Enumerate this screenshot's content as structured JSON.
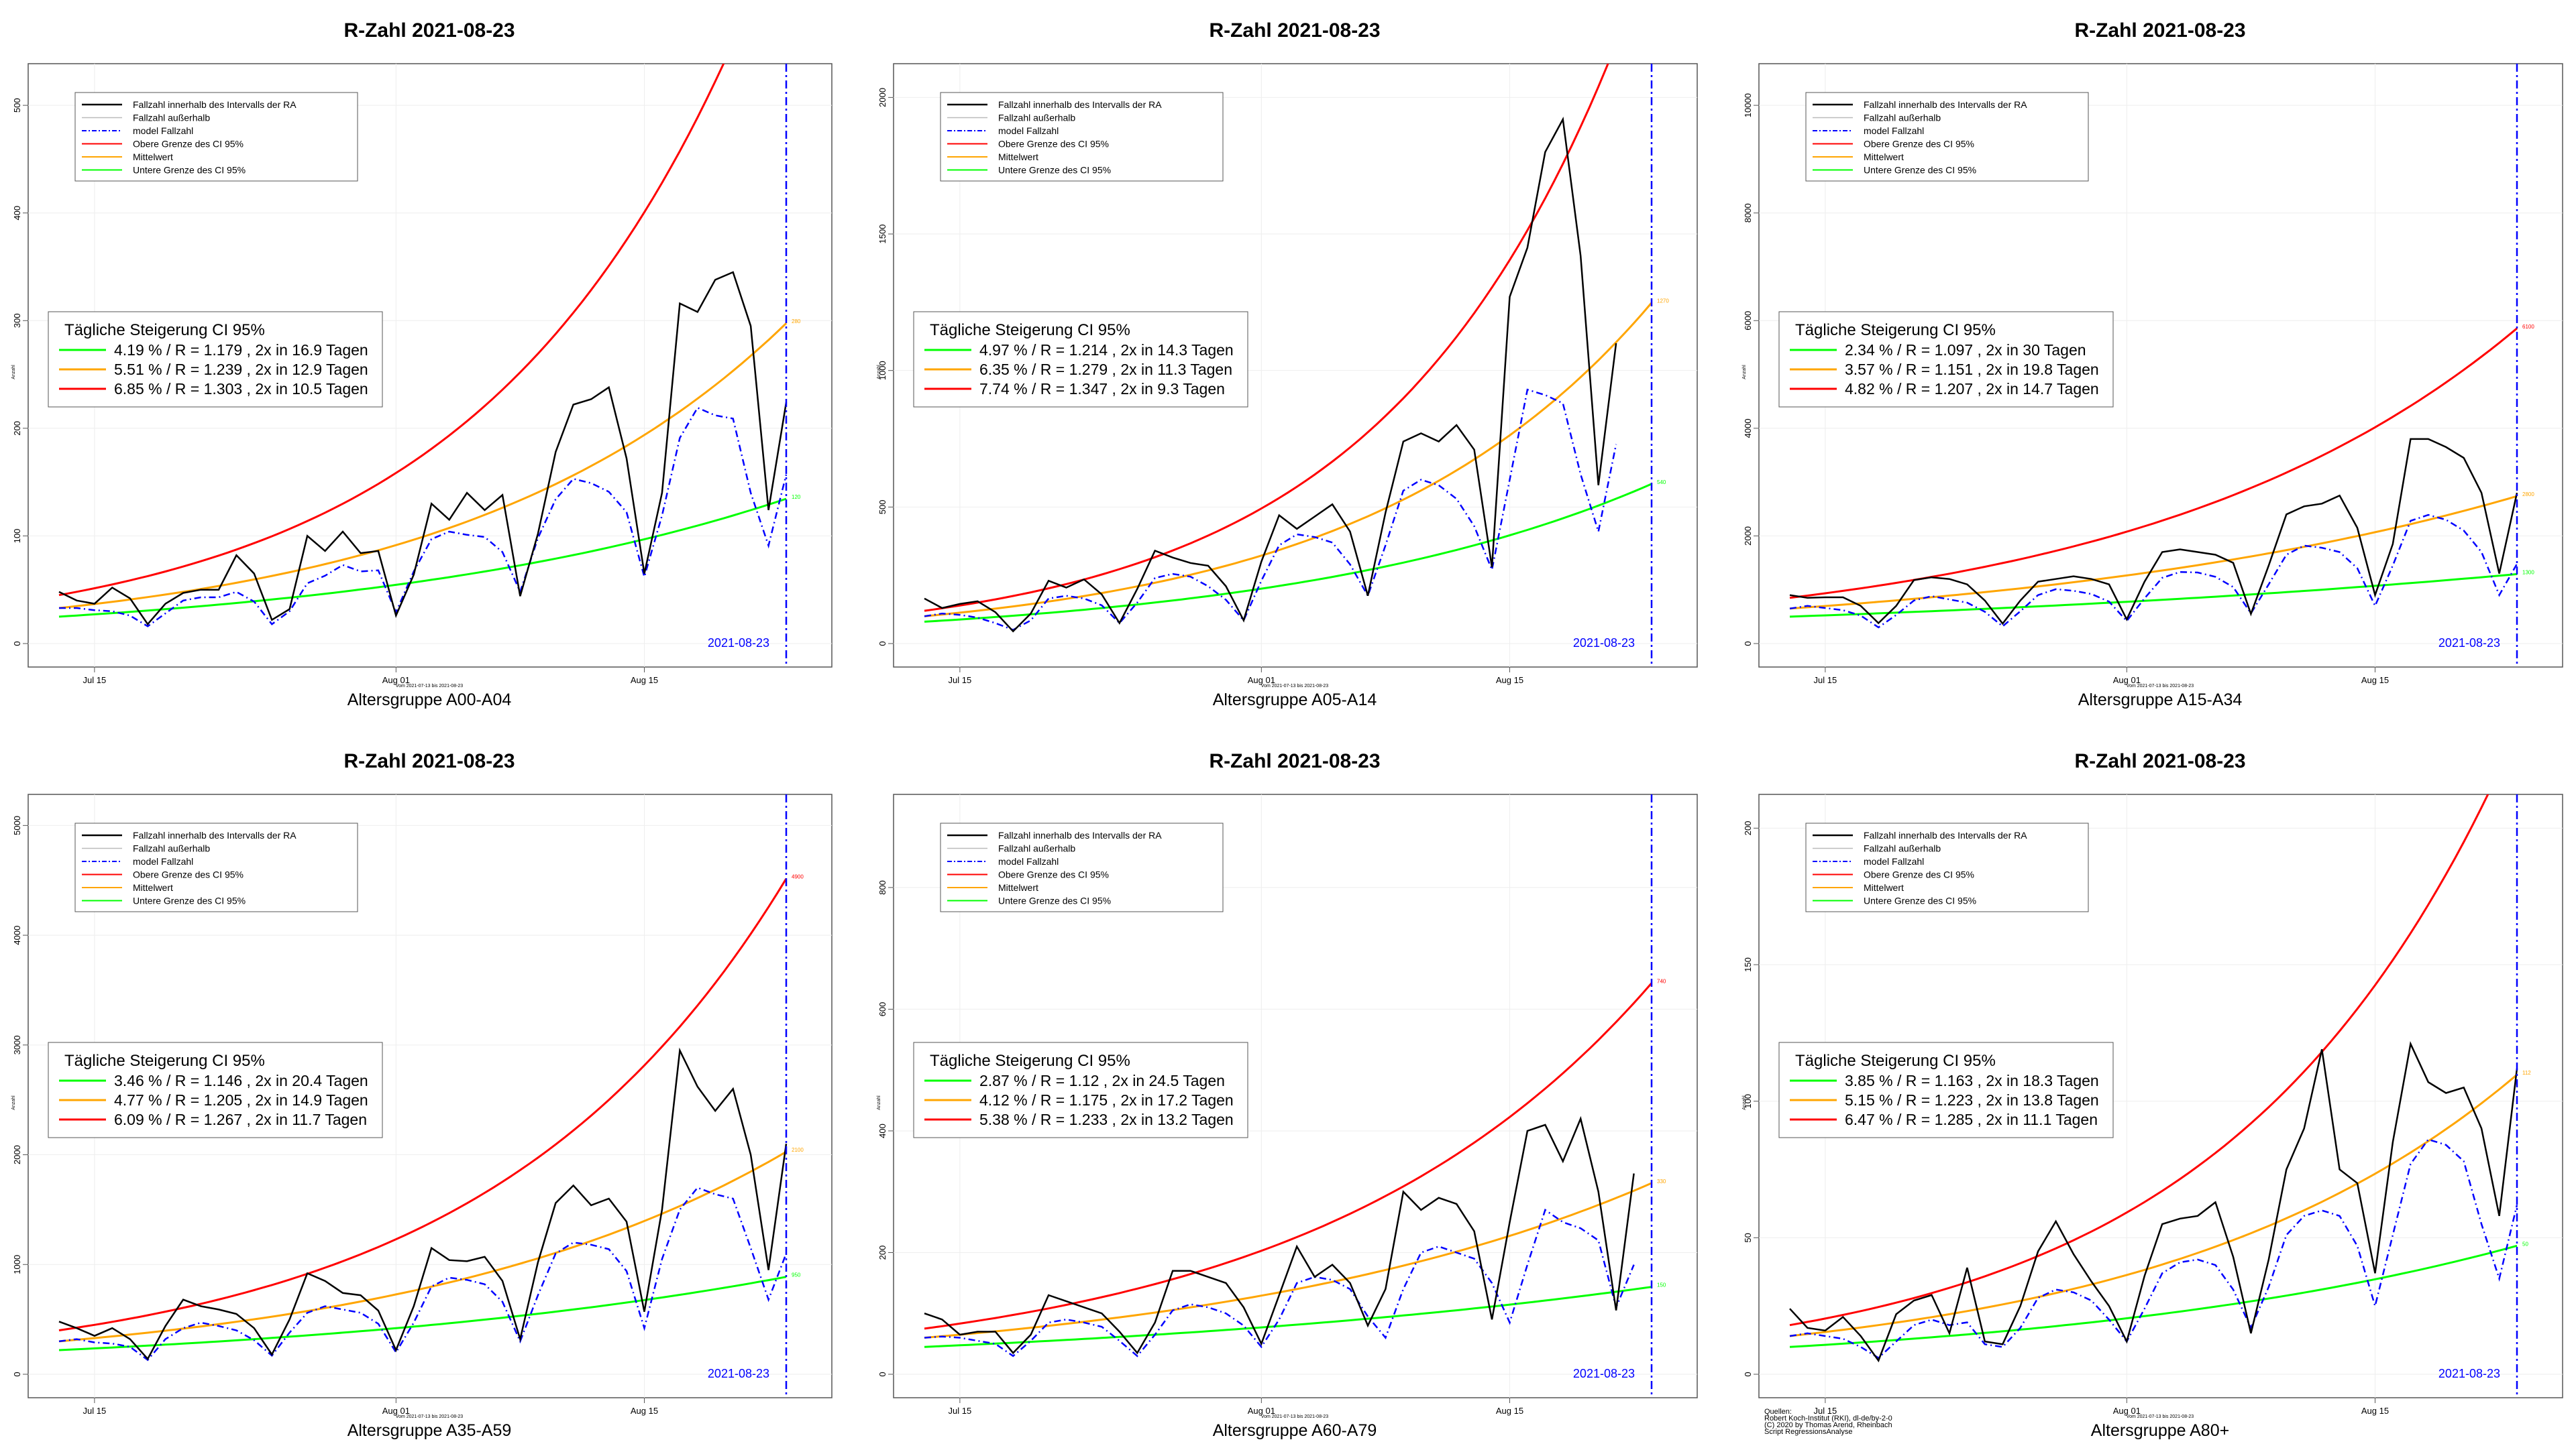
{
  "figure": {
    "source_lines": [
      "Quellen:",
      "Robert Koch-Institut (RKI), dl-de/by-2-0",
      "(C) 2020 by Thomas Arend, Rheinbach",
      "Script RegressionsAnalyse"
    ]
  },
  "colors": {
    "observed": "#000000",
    "outside": "#bbbbbb",
    "model": "#0000ff",
    "upper": "#ff0000",
    "mean": "#ffa500",
    "lower": "#00ff00",
    "date_line": "#0000ff"
  },
  "chart_data": [
    {
      "type": "line",
      "title": "R-Zahl 2021-08-23",
      "xlabel": "Altersgruppe A00-A04",
      "ylabel": "Anzahl",
      "sublabel": "Vom 2021-07-13 bis 2021-08-23",
      "date_line_label": "2021-08-23",
      "x_ticks": [
        "Jul 15",
        "Aug 01",
        "Aug 15"
      ],
      "ylim": [
        0,
        520
      ],
      "y_ticks": [
        0,
        100,
        200,
        300,
        400,
        500
      ],
      "legend": [
        "Fallzahl innerhalb des Intervalls der RA",
        "Fallzahl außerhalb",
        "model Fallzahl",
        "Obere Grenze des CI 95%",
        "Mittelwert",
        "Untere Grenze des CI 95%"
      ],
      "inset": {
        "title": "Tägliche Steigerung CI  95%",
        "rows": [
          "4.19 % / R = 1.179 , 2x in 16.9 Tagen",
          "5.51 % / R = 1.239 , 2x in 12.9 Tagen",
          "6.85 % / R = 1.303 , 2x in 10.5 Tagen"
        ]
      },
      "start": {
        "upper": 45,
        "mean": 33,
        "lower": 25
      },
      "end_labels": {
        "upper": "",
        "mean": "280",
        "lower": "120"
      },
      "observed": [
        48,
        40,
        37,
        52,
        42,
        18,
        37,
        47,
        50,
        50,
        82,
        65,
        22,
        32,
        100,
        86,
        104,
        84,
        86,
        26,
        64,
        130,
        115,
        140,
        124,
        138,
        44,
        102,
        178,
        222,
        227,
        238,
        172,
        65,
        140,
        316,
        308,
        338,
        345,
        295,
        124,
        224
      ],
      "model": [
        33,
        33,
        31,
        30,
        26,
        16,
        28,
        40,
        43,
        43,
        48,
        39,
        18,
        30,
        56,
        63,
        73,
        67,
        68,
        29,
        67,
        97,
        104,
        101,
        99,
        85,
        48,
        98,
        134,
        153,
        149,
        141,
        122,
        62,
        119,
        191,
        219,
        212,
        209,
        140,
        91,
        157
      ]
    },
    {
      "type": "line",
      "title": "R-Zahl 2021-08-23",
      "xlabel": "Altersgruppe A05-A14",
      "ylabel": "Anzahl",
      "sublabel": "Vom 2021-07-13 bis 2021-08-23",
      "date_line_label": "2021-08-23",
      "x_ticks": [
        "Jul 15",
        "Aug 01",
        "Aug 15"
      ],
      "ylim": [
        0,
        2050
      ],
      "y_ticks": [
        0,
        500,
        1000,
        1500,
        2000
      ],
      "legend": [
        "Fallzahl innerhalb des Intervalls der RA",
        "Fallzahl außerhalb",
        "model Fallzahl",
        "Obere Grenze des CI 95%",
        "Mittelwert",
        "Untere Grenze des CI 95%"
      ],
      "inset": {
        "title": "Tägliche Steigerung CI  95%",
        "rows": [
          "4.97 % / R = 1.214 , 2x in 14.3 Tagen",
          "6.35 % / R = 1.279 , 2x in 11.3 Tagen",
          "7.74 % / R = 1.347 , 2x in 9.3 Tagen"
        ]
      },
      "start": {
        "upper": 120,
        "mean": 100,
        "lower": 80
      },
      "end_labels": {
        "upper": "",
        "mean": "1270",
        "lower": "540"
      },
      "observed": [
        165,
        130,
        145,
        155,
        115,
        45,
        110,
        230,
        205,
        235,
        180,
        75,
        200,
        340,
        315,
        295,
        285,
        210,
        85,
        300,
        470,
        420,
        465,
        510,
        410,
        175,
        480,
        740,
        770,
        740,
        800,
        710,
        280,
        1270,
        1450,
        1800,
        1920,
        1420,
        580,
        1100
      ],
      "model": [
        100,
        110,
        105,
        95,
        75,
        50,
        85,
        165,
        175,
        165,
        140,
        75,
        150,
        240,
        255,
        245,
        210,
        160,
        85,
        230,
        360,
        400,
        390,
        370,
        290,
        175,
        360,
        560,
        600,
        580,
        530,
        430,
        270,
        600,
        930,
        910,
        880,
        620,
        410,
        730
      ]
    },
    {
      "type": "line",
      "title": "R-Zahl 2021-08-23",
      "xlabel": "Altersgruppe A15-A34",
      "ylabel": "Anzahl",
      "sublabel": "Vom 2021-07-13 bis 2021-08-23",
      "date_line_label": "2021-08-23",
      "x_ticks": [
        "Jul 15",
        "Aug 01",
        "Aug 15"
      ],
      "ylim": [
        0,
        10400
      ],
      "y_ticks": [
        0,
        2000,
        4000,
        6000,
        8000,
        10000
      ],
      "legend": [
        "Fallzahl innerhalb des Intervalls der RA",
        "Fallzahl außerhalb",
        "model Fallzahl",
        "Obere Grenze des CI 95%",
        "Mittelwert",
        "Untere Grenze des CI 95%"
      ],
      "inset": {
        "title": "Tägliche Steigerung CI  95%",
        "rows": [
          "2.34 % / R = 1.097 , 2x in 30 Tagen",
          "3.57 % / R = 1.151 , 2x in 19.8 Tagen",
          "4.82 % / R = 1.207 , 2x in 14.7 Tagen"
        ]
      },
      "start": {
        "upper": 850,
        "mean": 650,
        "lower": 500
      },
      "end_labels": {
        "upper": "6100",
        "mean": "2800",
        "lower": "1300"
      },
      "observed": [
        900,
        850,
        860,
        860,
        700,
        380,
        700,
        1180,
        1230,
        1200,
        1100,
        800,
        370,
        800,
        1150,
        1200,
        1250,
        1200,
        1100,
        450,
        1150,
        1700,
        1750,
        1700,
        1650,
        1500,
        550,
        1450,
        2400,
        2550,
        2600,
        2750,
        2150,
        900,
        1850,
        3800,
        3800,
        3650,
        3450,
        2800,
        1300,
        2800
      ],
      "model": [
        650,
        700,
        660,
        620,
        520,
        300,
        530,
        800,
        880,
        820,
        760,
        590,
        320,
        600,
        900,
        1010,
        980,
        920,
        780,
        420,
        840,
        1220,
        1330,
        1320,
        1240,
        1050,
        560,
        1100,
        1650,
        1820,
        1780,
        1700,
        1400,
        700,
        1450,
        2280,
        2390,
        2300,
        2100,
        1700,
        900,
        1480
      ]
    },
    {
      "type": "line",
      "title": "R-Zahl 2021-08-23",
      "xlabel": "Altersgruppe A35-A59",
      "ylabel": "Anzahl",
      "sublabel": "Vom 2021-07-13 bis 2021-08-23",
      "date_line_label": "2021-08-23",
      "x_ticks": [
        "Jul 15",
        "Aug 01",
        "Aug 15"
      ],
      "ylim": [
        0,
        5100
      ],
      "y_ticks": [
        0,
        1000,
        2000,
        3000,
        4000,
        5000
      ],
      "legend": [
        "Fallzahl innerhalb des Intervalls der RA",
        "Fallzahl außerhalb",
        "model Fallzahl",
        "Obere Grenze des CI 95%",
        "Mittelwert",
        "Untere Grenze des CI 95%"
      ],
      "inset": {
        "title": "Tägliche Steigerung CI  95%",
        "rows": [
          "3.46 % / R = 1.146 , 2x in 20.4 Tagen",
          "4.77 % / R = 1.205 , 2x in 14.9 Tagen",
          "6.09 % / R = 1.267 , 2x in 11.7 Tagen"
        ]
      },
      "start": {
        "upper": 400,
        "mean": 300,
        "lower": 220
      },
      "end_labels": {
        "upper": "4900",
        "mean": "2100",
        "lower": "950"
      },
      "observed": [
        480,
        420,
        350,
        420,
        320,
        140,
        440,
        680,
        620,
        590,
        550,
        420,
        180,
        500,
        920,
        850,
        740,
        720,
        580,
        220,
        620,
        1150,
        1040,
        1030,
        1070,
        850,
        320,
        1020,
        1560,
        1720,
        1540,
        1600,
        1390,
        570,
        1500,
        2950,
        2620,
        2400,
        2600,
        2000,
        950,
        2100
      ],
      "model": [
        300,
        320,
        290,
        280,
        250,
        130,
        320,
        420,
        470,
        440,
        400,
        310,
        170,
        380,
        560,
        620,
        590,
        560,
        460,
        200,
        470,
        800,
        880,
        860,
        820,
        660,
        300,
        720,
        1100,
        1200,
        1180,
        1140,
        940,
        420,
        1050,
        1500,
        1700,
        1640,
        1600,
        1150,
        680,
        1100
      ]
    },
    {
      "type": "line",
      "title": "R-Zahl 2021-08-23",
      "xlabel": "Altersgruppe A60-A79",
      "ylabel": "Anzahl",
      "sublabel": "Vom 2021-07-13 bis 2021-08-23",
      "date_line_label": "2021-08-23",
      "x_ticks": [
        "Jul 15",
        "Aug 01",
        "Aug 15"
      ],
      "ylim": [
        0,
        920
      ],
      "y_ticks": [
        0,
        200,
        400,
        600,
        800
      ],
      "legend": [
        "Fallzahl innerhalb des Intervalls der RA",
        "Fallzahl außerhalb",
        "model Fallzahl",
        "Obere Grenze des CI 95%",
        "Mittelwert",
        "Untere Grenze des CI 95%"
      ],
      "inset": {
        "title": "Tägliche Steigerung CI  95%",
        "rows": [
          "2.87 % / R = 1.12 , 2x in 24.5 Tagen",
          "4.12 % / R = 1.175 , 2x in 17.2 Tagen",
          "5.38 % / R = 1.233 , 2x in 13.2 Tagen"
        ]
      },
      "start": {
        "upper": 75,
        "mean": 60,
        "lower": 45
      },
      "end_labels": {
        "upper": "740",
        "mean": "330",
        "lower": "150"
      },
      "observed": [
        100,
        90,
        65,
        70,
        70,
        35,
        65,
        130,
        120,
        110,
        100,
        70,
        35,
        85,
        170,
        170,
        160,
        150,
        110,
        50,
        130,
        210,
        160,
        180,
        150,
        80,
        140,
        300,
        270,
        290,
        280,
        235,
        90,
        250,
        400,
        410,
        350,
        420,
        300,
        105,
        330
      ],
      "model": [
        60,
        62,
        60,
        55,
        50,
        30,
        55,
        85,
        90,
        85,
        78,
        55,
        30,
        65,
        105,
        115,
        110,
        100,
        80,
        45,
        90,
        150,
        160,
        155,
        140,
        95,
        60,
        140,
        200,
        210,
        200,
        190,
        150,
        85,
        180,
        270,
        250,
        240,
        220,
        110,
        180
      ]
    },
    {
      "type": "line",
      "title": "R-Zahl 2021-08-23",
      "xlabel": "Altersgruppe A80+",
      "ylabel": "Anzahl",
      "sublabel": "Vom 2021-07-13 bis 2021-08-23",
      "date_line_label": "2021-08-23",
      "x_ticks": [
        "Jul 15",
        "Aug 01",
        "Aug 15"
      ],
      "ylim": [
        0,
        205
      ],
      "y_ticks": [
        0,
        50,
        100,
        150,
        200
      ],
      "legend": [
        "Fallzahl innerhalb des Intervalls der RA",
        "Fallzahl außerhalb",
        "model Fallzahl",
        "Obere Grenze des CI 95%",
        "Mittelwert",
        "Untere Grenze des CI 95%"
      ],
      "inset": {
        "title": "Tägliche Steigerung CI  95%",
        "rows": [
          "3.85 % / R = 1.163 , 2x in 18.3 Tagen",
          "5.15 % / R = 1.223 , 2x in 13.8 Tagen",
          "6.47 % / R = 1.285 , 2x in 11.1 Tagen"
        ]
      },
      "start": {
        "upper": 18,
        "mean": 14,
        "lower": 10
      },
      "end_labels": {
        "upper": "",
        "mean": "112",
        "lower": "50"
      },
      "observed": [
        24,
        17,
        16,
        21,
        14,
        5,
        22,
        27,
        29,
        15,
        39,
        12,
        11,
        25,
        45,
        56,
        44,
        34,
        25,
        12,
        36,
        55,
        57,
        58,
        63,
        43,
        15,
        42,
        75,
        90,
        119,
        75,
        70,
        37,
        85,
        121,
        107,
        103,
        105,
        90,
        58,
        112
      ],
      "model": [
        14,
        15,
        14,
        13,
        10,
        6,
        12,
        18,
        20,
        18,
        19,
        11,
        10,
        17,
        28,
        31,
        30,
        27,
        20,
        12,
        24,
        37,
        41,
        42,
        40,
        31,
        17,
        32,
        51,
        58,
        60,
        58,
        47,
        25,
        51,
        77,
        86,
        84,
        78,
        55,
        35,
        62
      ]
    }
  ]
}
